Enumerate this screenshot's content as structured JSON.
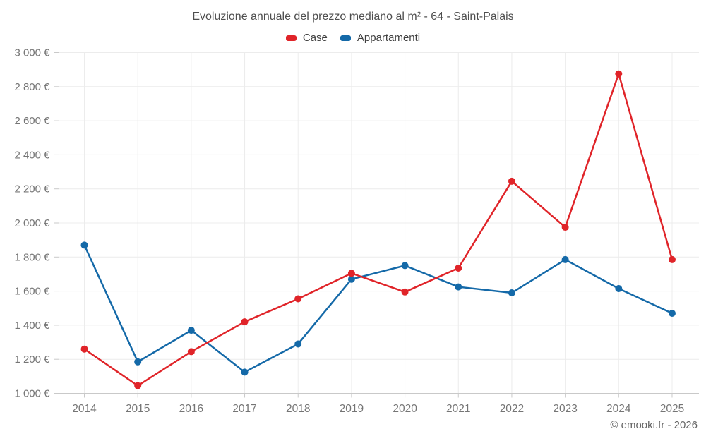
{
  "chart_data": {
    "type": "line",
    "title": "Evoluzione annuale del prezzo mediano al m² - 64 - Saint-Palais",
    "footer": "© emooki.fr - 2026",
    "categories": [
      "2014",
      "2015",
      "2016",
      "2017",
      "2018",
      "2019",
      "2020",
      "2021",
      "2022",
      "2023",
      "2024",
      "2025"
    ],
    "series": [
      {
        "name": "Case",
        "color": "#e02429",
        "values": [
          1260,
          1045,
          1245,
          1420,
          1555,
          1705,
          1595,
          1735,
          2245,
          1975,
          2875,
          1785
        ]
      },
      {
        "name": "Appartamenti",
        "color": "#1469a8",
        "values": [
          1870,
          1185,
          1370,
          1125,
          1290,
          1670,
          1750,
          1625,
          1590,
          1785,
          1615,
          1470
        ]
      }
    ],
    "xlabel": "",
    "ylabel": "",
    "ylim": [
      1000,
      3000
    ],
    "ytick_step": 200,
    "ytick_suffix": " €",
    "grid": true,
    "legend_position": "top",
    "axis_label_color": "#757575",
    "axis_line_color": "#c9c9c9",
    "grid_line_color": "#ececec"
  }
}
